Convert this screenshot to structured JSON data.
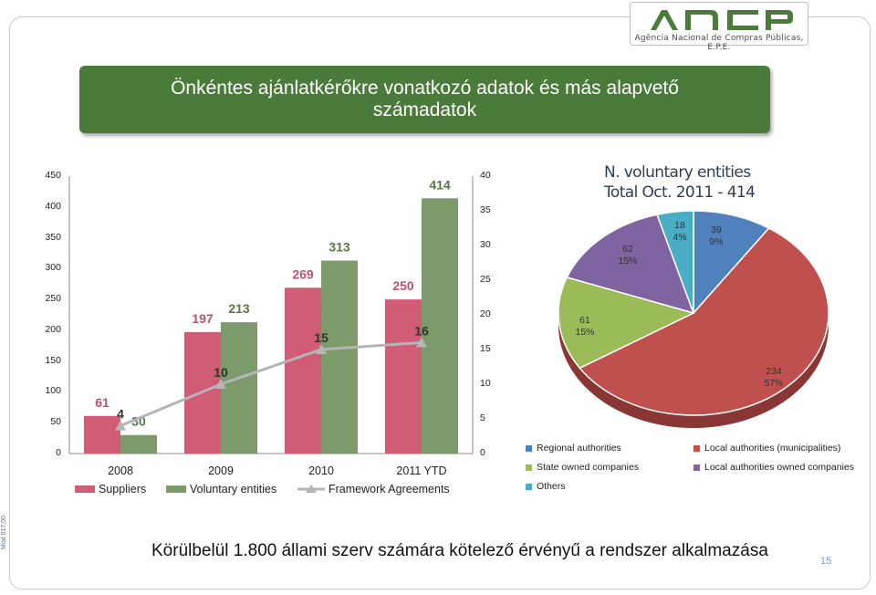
{
  "logo": {
    "brand": "ANCP",
    "subtitle": "Agência Nacional de Compras Públicas, E.P.E."
  },
  "title": "Önkéntes ajánlatkérőkre vonatkozó adatok és más alapvető számadatok",
  "colors": {
    "suppliers": "#d05c76",
    "voluntary": "#7d9a6a",
    "framework": "#b5b5b5",
    "banner": "#4b7b3a",
    "regional": "#4f81bd",
    "local": "#c0504d",
    "state": "#9bbb59",
    "local_owned": "#8064a2",
    "others": "#4bacc6"
  },
  "chart_data": [
    {
      "type": "bar",
      "categories": [
        "2008",
        "2009",
        "2010",
        "2011 YTD"
      ],
      "series": [
        {
          "name": "Suppliers",
          "values": [
            61,
            197,
            269,
            250
          ],
          "axis": "left"
        },
        {
          "name": "Voluntary entities",
          "values": [
            30,
            213,
            313,
            414
          ],
          "axis": "left"
        },
        {
          "name": "Framework Agreements",
          "values": [
            4,
            10,
            15,
            16
          ],
          "axis": "right",
          "render": "line"
        }
      ],
      "ylim": [
        0,
        450
      ],
      "y_ticks": [
        0,
        50,
        100,
        150,
        200,
        250,
        300,
        350,
        400,
        450
      ],
      "y2lim": [
        0,
        40
      ],
      "y2_ticks": [
        0,
        5,
        10,
        15,
        20,
        25,
        30,
        35,
        40
      ],
      "legend": "bottom"
    },
    {
      "type": "pie",
      "title_line1": "N. voluntary entities",
      "title_line2": "Total Oct. 2011 - 414",
      "slices": [
        {
          "name": "Regional authorities",
          "value": 39,
          "pct": "9%"
        },
        {
          "name": "Local authorities (municipalities)",
          "value": 234,
          "pct": "57%"
        },
        {
          "name": "State owned companies",
          "value": 61,
          "pct": "15%"
        },
        {
          "name": "Local authorities owned companies",
          "value": 62,
          "pct": "15%"
        },
        {
          "name": "Others",
          "value": 18,
          "pct": "4%"
        }
      ],
      "legend": "bottom"
    }
  ],
  "footer": {
    "text": "Körülbelül 1.800 állami szerv számára kötelező érvényű a rendszer alkalmazása",
    "page": "15",
    "mod_code": "Mod 017.00"
  }
}
